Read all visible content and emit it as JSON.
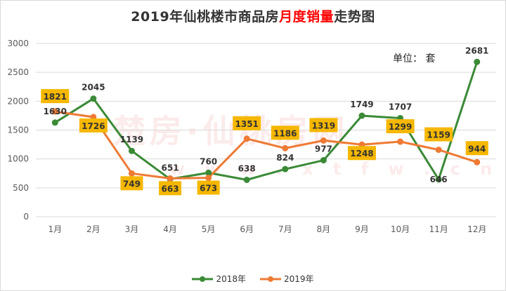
{
  "chart_data": {
    "type": "line",
    "title_prefix": "2019年仙桃楼市商品房",
    "title_highlight": "月度销量",
    "title_suffix": "走势图",
    "unit_label": "单位： 套",
    "watermark": "楚房·仙桃房网",
    "watermark_url": "w w w . x t f w . c n",
    "categories": [
      "1月",
      "2月",
      "3月",
      "4月",
      "5月",
      "6月",
      "7月",
      "8月",
      "9月",
      "10月",
      "11月",
      "12月"
    ],
    "ylim": [
      0,
      3000
    ],
    "yticks": [
      0,
      500,
      1000,
      1500,
      2000,
      2500,
      3000
    ],
    "grid": true,
    "legend_position": "bottom",
    "series": [
      {
        "name": "2018年",
        "color": "#3a8a36",
        "values": [
          1630,
          2045,
          1139,
          651,
          760,
          638,
          824,
          977,
          1749,
          1707,
          646,
          2681
        ]
      },
      {
        "name": "2019年",
        "color": "#ee7a34",
        "values": [
          1821,
          1726,
          749,
          663,
          673,
          1351,
          1186,
          1319,
          1248,
          1299,
          1159,
          944
        ]
      }
    ],
    "label_box_color": "#f5b700"
  }
}
